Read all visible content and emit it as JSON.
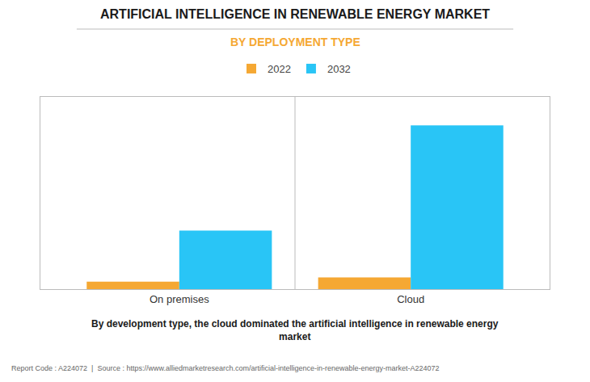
{
  "chart_data": {
    "type": "bar",
    "title": "ARTIFICIAL INTELLIGENCE IN RENEWABLE ENERGY MARKET",
    "subtitle": "BY DEPLOYMENT TYPE",
    "caption": "By development type, the cloud dominated the artificial intelligence in renewable energy\nmarket",
    "footnote": "Report Code : A224072  |  Source : https://www.alliedmarketresearch.com/artificial-intelligence-in-renewable-energy-market-A224072",
    "categories": [
      "On premises",
      "Cloud"
    ],
    "series": [
      {
        "name": "2022",
        "color": "#F5A833",
        "values": [
          0.45,
          0.7
        ]
      },
      {
        "name": "2032",
        "color": "#29C5F6",
        "values": [
          3.5,
          9.8
        ]
      }
    ],
    "ylim": [
      0,
      11.5
    ],
    "yticks": [],
    "grid": false,
    "legend": "top",
    "tick_labels": "x"
  }
}
